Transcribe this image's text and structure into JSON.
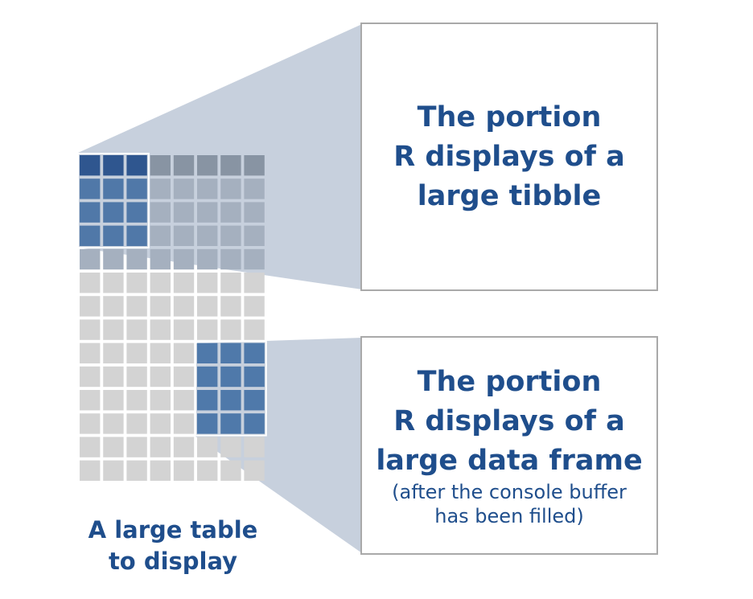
{
  "grid": {
    "columns": 8,
    "rows": 14,
    "tibble_view": {
      "rows": 4,
      "columns": 3
    },
    "tibble_header_context_columns": 5,
    "data_frame_view": {
      "first_row": 8,
      "last_row": 11,
      "first_column": 5,
      "last_column": 7
    }
  },
  "colors": {
    "cell": "#d3d3d3",
    "tibble_header": "#2f568f",
    "tibble_cells": "#5078a8",
    "shaded_header": "#8894a3",
    "shaded_cells": "#a5b0bf",
    "data_frame_cells": "#4f79aa",
    "wedge": "#c7d0dd",
    "box_border": "#a9a9a9",
    "text": "#1f4e8c"
  },
  "tibble_box": {
    "lines": [
      "The portion",
      "R displays of a",
      "large tibble"
    ]
  },
  "data_frame_box": {
    "lines": [
      "The portion",
      "R displays of a",
      "large data frame"
    ],
    "note_lines": [
      "(after the console buffer",
      "has been filled)"
    ]
  },
  "caption": {
    "lines": [
      "A large table",
      "to display"
    ]
  }
}
